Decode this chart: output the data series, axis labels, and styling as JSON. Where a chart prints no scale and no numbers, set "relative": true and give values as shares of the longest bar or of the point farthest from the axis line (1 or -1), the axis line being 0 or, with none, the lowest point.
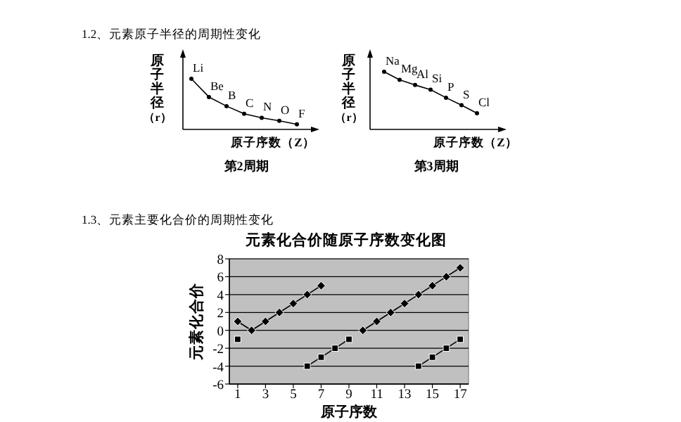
{
  "chart_data": [
    {
      "type": "line",
      "relative": true,
      "title": "第2周期",
      "xlabel": "原子序数（Z）",
      "ylabel": "原子半径（r）",
      "categories": [
        null,
        null,
        null,
        null,
        null,
        null,
        null
      ],
      "marker": "circle",
      "series": [
        {
          "color": "#000000",
          "values": [
            1,
            0.64,
            0.46,
            0.31,
            0.23,
            0.17,
            0.1
          ]
        }
      ],
      "annotations": [
        "1.2、元素原子半径的周期性变化",
        {
          "text": "Li",
          "y": 1
        },
        {
          "text": "Be",
          "y": 0.64
        },
        {
          "text": "B",
          "y": 0.46
        },
        {
          "text": "C",
          "y": 0.31
        },
        {
          "text": "N",
          "y": 0.23
        },
        {
          "text": "O",
          "y": 0.17
        },
        {
          "text": "F",
          "y": 0.1
        }
      ]
    },
    {
      "type": "line",
      "relative": true,
      "title": "第3周期",
      "xlabel": "原子序数（Z）",
      "ylabel": "原子半径（r）",
      "categories": [
        null,
        null,
        null,
        null,
        null,
        null,
        null
      ],
      "marker": "circle",
      "series": [
        {
          "color": "#000000",
          "values": [
            1,
            0.86,
            0.77,
            0.69,
            0.55,
            0.42,
            0.28
          ]
        }
      ],
      "annotations": [
        {
          "text": "Na",
          "y": 1
        },
        {
          "text": "Mg",
          "y": 0.86
        },
        {
          "text": "Al",
          "y": 0.77
        },
        {
          "text": "Si",
          "y": 0.69
        },
        {
          "text": "P",
          "y": 0.55
        },
        {
          "text": "S",
          "y": 0.42
        },
        {
          "text": "Cl",
          "y": 0.28
        }
      ]
    },
    {
      "type": "line",
      "title": "元素化合价随原子序数变化图",
      "xlabel": "原子序数",
      "ylabel": "元素化合价",
      "x": [
        1,
        2,
        3,
        4,
        5,
        6,
        7,
        8,
        9,
        10,
        11,
        12,
        13,
        14,
        15,
        16,
        17
      ],
      "xlim": [
        0.4,
        17.6
      ],
      "xticks": [
        1,
        3,
        5,
        7,
        9,
        11,
        13,
        15,
        17
      ],
      "ylim": [
        -6,
        8
      ],
      "yticks": [
        -6,
        -4,
        -2,
        0,
        2,
        4,
        6,
        8
      ],
      "grid": "y",
      "series": [
        {
          "color": "#000000",
          "marker": "diamond",
          "values": [
            1,
            0,
            1,
            2,
            3,
            4,
            5,
            null,
            null,
            0,
            1,
            2,
            3,
            4,
            5,
            6,
            7
          ]
        },
        {
          "color": "#000000",
          "marker": "square",
          "values": [
            -1,
            null,
            null,
            null,
            null,
            -4,
            -3,
            -2,
            -1,
            null,
            null,
            null,
            null,
            -4,
            -3,
            -2,
            -1
          ]
        }
      ],
      "annotations": [
        "1.3、元素主要化合价的周期性变化"
      ]
    }
  ]
}
